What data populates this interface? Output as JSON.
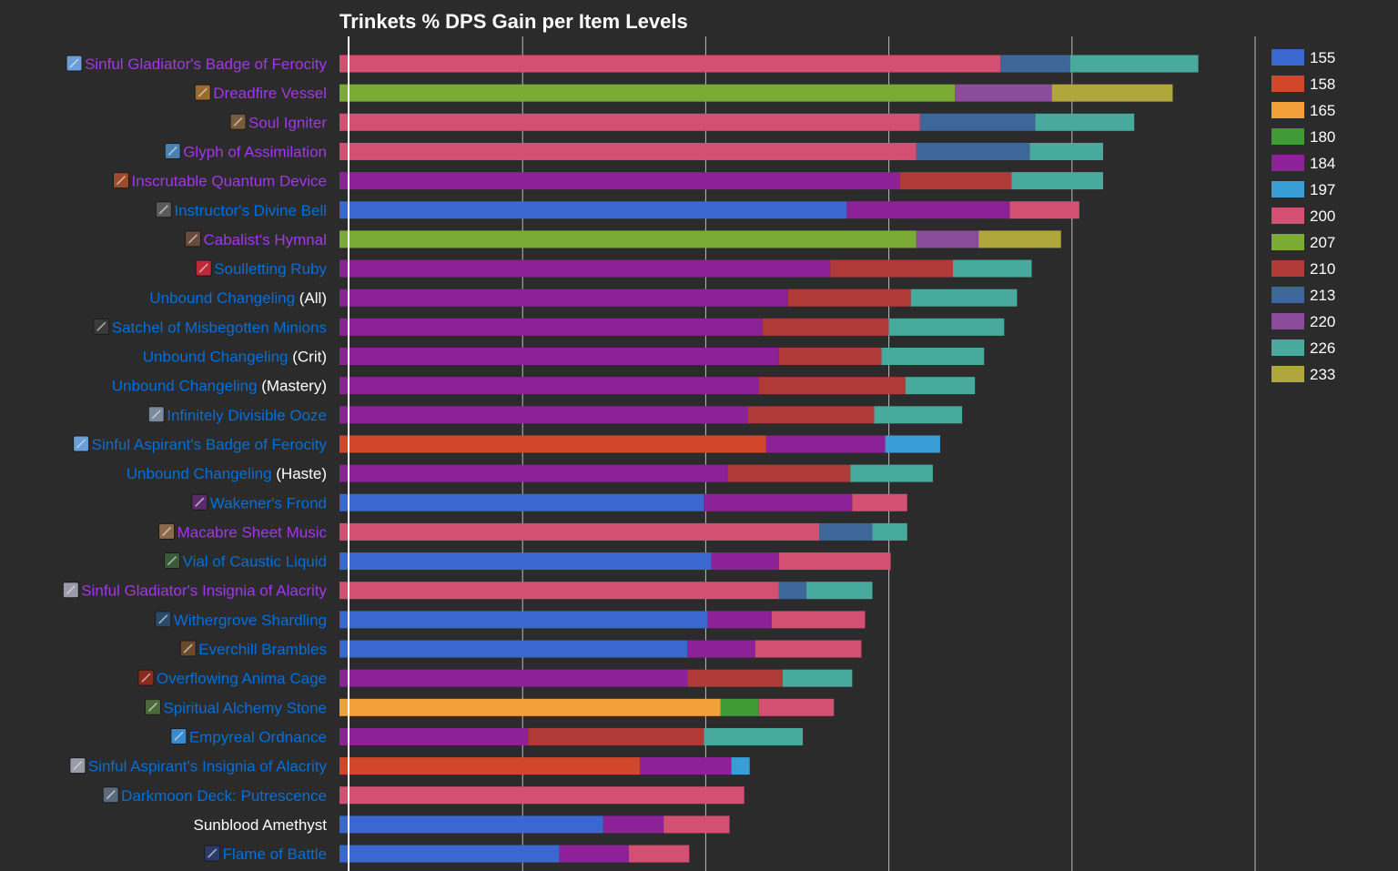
{
  "chart_data": {
    "type": "bar",
    "stacked": true,
    "orientation": "horizontal",
    "title": "Trinkets % DPS Gain per Item Levels",
    "xlabel": "",
    "ylabel": "",
    "xlim": [
      0,
      5
    ],
    "gridlines": [
      0,
      1,
      2,
      3,
      4,
      5
    ],
    "grid": true,
    "legend_position": "right",
    "legend": [
      {
        "label": "155",
        "color": "#3b68d0"
      },
      {
        "label": "158",
        "color": "#d2472a"
      },
      {
        "label": "165",
        "color": "#f4a03a"
      },
      {
        "label": "180",
        "color": "#3e9b35"
      },
      {
        "label": "184",
        "color": "#8d2198"
      },
      {
        "label": "197",
        "color": "#3a9ed6"
      },
      {
        "label": "200",
        "color": "#d45073"
      },
      {
        "label": "207",
        "color": "#7aab35"
      },
      {
        "label": "210",
        "color": "#b03a38"
      },
      {
        "label": "213",
        "color": "#3d6798"
      },
      {
        "label": "220",
        "color": "#8c4c9c"
      },
      {
        "label": "226",
        "color": "#48aa9c"
      },
      {
        "label": "233",
        "color": "#b0a73c"
      }
    ],
    "items": [
      {
        "name": "Sinful Gladiator's Badge of Ferocity",
        "suffix": "",
        "color": "#a335ee",
        "icon": "badge-icon",
        "icon_bg": "#6a9ed8",
        "segments": [
          {
            "level": "200",
            "value": 3.61
          },
          {
            "level": "213",
            "value": 0.38
          },
          {
            "level": "226",
            "value": 0.7
          }
        ]
      },
      {
        "name": "Dreadfire Vessel",
        "suffix": "",
        "color": "#a335ee",
        "icon": "vessel-icon",
        "icon_bg": "#9b6a2f",
        "segments": [
          {
            "level": "207",
            "value": 3.36
          },
          {
            "level": "220",
            "value": 0.53
          },
          {
            "level": "233",
            "value": 0.66
          }
        ]
      },
      {
        "name": "Soul Igniter",
        "suffix": "",
        "color": "#a335ee",
        "icon": "igniter-icon",
        "icon_bg": "#7a5a3a",
        "segments": [
          {
            "level": "200",
            "value": 3.17
          },
          {
            "level": "213",
            "value": 0.63
          },
          {
            "level": "226",
            "value": 0.54
          }
        ]
      },
      {
        "name": "Glyph of Assimilation",
        "suffix": "",
        "color": "#a335ee",
        "icon": "glyph-icon",
        "icon_bg": "#4a7fb0",
        "segments": [
          {
            "level": "200",
            "value": 3.15
          },
          {
            "level": "213",
            "value": 0.62
          },
          {
            "level": "226",
            "value": 0.4
          }
        ]
      },
      {
        "name": "Inscrutable Quantum Device",
        "suffix": "",
        "color": "#a335ee",
        "icon": "quantum-device-icon",
        "icon_bg": "#a04a2a",
        "segments": [
          {
            "level": "184",
            "value": 3.06
          },
          {
            "level": "210",
            "value": 0.61
          },
          {
            "level": "226",
            "value": 0.5
          }
        ]
      },
      {
        "name": "Instructor's Divine Bell",
        "suffix": "",
        "color": "#0070dd",
        "icon": "bell-icon",
        "icon_bg": "#5a5a5a",
        "segments": [
          {
            "level": "155",
            "value": 2.77
          },
          {
            "level": "184",
            "value": 0.89
          },
          {
            "level": "200",
            "value": 0.38
          }
        ]
      },
      {
        "name": "Cabalist's Hymnal",
        "suffix": "",
        "color": "#a335ee",
        "icon": "hymnal-icon",
        "icon_bg": "#6a4a3a",
        "segments": [
          {
            "level": "207",
            "value": 3.15
          },
          {
            "level": "220",
            "value": 0.34
          },
          {
            "level": "233",
            "value": 0.45
          }
        ]
      },
      {
        "name": "Soulletting Ruby",
        "suffix": "",
        "color": "#0070dd",
        "icon": "ruby-icon",
        "icon_bg": "#c0283a",
        "segments": [
          {
            "level": "184",
            "value": 2.68
          },
          {
            "level": "210",
            "value": 0.67
          },
          {
            "level": "226",
            "value": 0.43
          }
        ]
      },
      {
        "name": "Unbound Changeling",
        "suffix": " (All)",
        "color": "#0070dd",
        "icon": "",
        "icon_bg": "",
        "segments": [
          {
            "level": "184",
            "value": 2.45
          },
          {
            "level": "210",
            "value": 0.67
          },
          {
            "level": "226",
            "value": 0.58
          }
        ]
      },
      {
        "name": "Satchel of Misbegotten Minions",
        "suffix": "",
        "color": "#0070dd",
        "icon": "satchel-icon",
        "icon_bg": "#3a3a3a",
        "segments": [
          {
            "level": "184",
            "value": 2.31
          },
          {
            "level": "210",
            "value": 0.69
          },
          {
            "level": "226",
            "value": 0.63
          }
        ]
      },
      {
        "name": "Unbound Changeling",
        "suffix": " (Crit)",
        "color": "#0070dd",
        "icon": "",
        "icon_bg": "",
        "segments": [
          {
            "level": "184",
            "value": 2.4
          },
          {
            "level": "210",
            "value": 0.56
          },
          {
            "level": "226",
            "value": 0.56
          }
        ]
      },
      {
        "name": "Unbound Changeling",
        "suffix": " (Mastery)",
        "color": "#0070dd",
        "icon": "",
        "icon_bg": "",
        "segments": [
          {
            "level": "184",
            "value": 2.29
          },
          {
            "level": "210",
            "value": 0.8
          },
          {
            "level": "226",
            "value": 0.38
          }
        ]
      },
      {
        "name": "Infinitely Divisible Ooze",
        "suffix": "",
        "color": "#0070dd",
        "icon": "ooze-icon",
        "icon_bg": "#7a8a9a",
        "segments": [
          {
            "level": "184",
            "value": 2.23
          },
          {
            "level": "210",
            "value": 0.69
          },
          {
            "level": "226",
            "value": 0.48
          }
        ]
      },
      {
        "name": "Sinful Aspirant's Badge of Ferocity",
        "suffix": "",
        "color": "#0070dd",
        "icon": "badge-icon",
        "icon_bg": "#6a9ed8",
        "segments": [
          {
            "level": "158",
            "value": 2.33
          },
          {
            "level": "184",
            "value": 0.65
          },
          {
            "level": "197",
            "value": 0.3
          }
        ]
      },
      {
        "name": "Unbound Changeling",
        "suffix": " (Haste)",
        "color": "#0070dd",
        "icon": "",
        "icon_bg": "",
        "segments": [
          {
            "level": "184",
            "value": 2.12
          },
          {
            "level": "210",
            "value": 0.67
          },
          {
            "level": "226",
            "value": 0.45
          }
        ]
      },
      {
        "name": "Wakener's Frond",
        "suffix": "",
        "color": "#0070dd",
        "icon": "frond-icon",
        "icon_bg": "#5a2a6a",
        "segments": [
          {
            "level": "155",
            "value": 1.99
          },
          {
            "level": "184",
            "value": 0.81
          },
          {
            "level": "200",
            "value": 0.3
          }
        ]
      },
      {
        "name": "Macabre Sheet Music",
        "suffix": "",
        "color": "#a335ee",
        "icon": "sheet-music-icon",
        "icon_bg": "#8a6a4a",
        "segments": [
          {
            "level": "200",
            "value": 2.62
          },
          {
            "level": "213",
            "value": 0.29
          },
          {
            "level": "226",
            "value": 0.19
          }
        ]
      },
      {
        "name": "Vial of Caustic Liquid",
        "suffix": "",
        "color": "#0070dd",
        "icon": "vial-icon",
        "icon_bg": "#3a5a3a",
        "segments": [
          {
            "level": "155",
            "value": 2.03
          },
          {
            "level": "184",
            "value": 0.37
          },
          {
            "level": "200",
            "value": 0.61
          }
        ]
      },
      {
        "name": "Sinful Gladiator's Insignia of Alacrity",
        "suffix": "",
        "color": "#a335ee",
        "icon": "insignia-icon",
        "icon_bg": "#9a9aa8",
        "segments": [
          {
            "level": "200",
            "value": 2.4
          },
          {
            "level": "213",
            "value": 0.15
          },
          {
            "level": "226",
            "value": 0.36
          }
        ]
      },
      {
        "name": "Withergrove Shardling",
        "suffix": "",
        "color": "#0070dd",
        "icon": "shardling-icon",
        "icon_bg": "#2a4a6a",
        "segments": [
          {
            "level": "155",
            "value": 2.01
          },
          {
            "level": "184",
            "value": 0.35
          },
          {
            "level": "200",
            "value": 0.51
          }
        ]
      },
      {
        "name": "Everchill Brambles",
        "suffix": "",
        "color": "#0070dd",
        "icon": "brambles-icon",
        "icon_bg": "#6a4a2a",
        "segments": [
          {
            "level": "155",
            "value": 1.9
          },
          {
            "level": "184",
            "value": 0.37
          },
          {
            "level": "200",
            "value": 0.58
          }
        ]
      },
      {
        "name": "Overflowing Anima Cage",
        "suffix": "",
        "color": "#0070dd",
        "icon": "anima-cage-icon",
        "icon_bg": "#8a2a1a",
        "segments": [
          {
            "level": "184",
            "value": 1.9
          },
          {
            "level": "210",
            "value": 0.52
          },
          {
            "level": "226",
            "value": 0.38
          }
        ]
      },
      {
        "name": "Spiritual Alchemy Stone",
        "suffix": "",
        "color": "#0070dd",
        "icon": "alchemy-stone-icon",
        "icon_bg": "#4a6a3a",
        "segments": [
          {
            "level": "165",
            "value": 2.08
          },
          {
            "level": "180",
            "value": 0.21
          },
          {
            "level": "200",
            "value": 0.41
          }
        ]
      },
      {
        "name": "Empyreal Ordnance",
        "suffix": "",
        "color": "#0070dd",
        "icon": "ordnance-icon",
        "icon_bg": "#3a8ad0",
        "segments": [
          {
            "level": "184",
            "value": 1.03
          },
          {
            "level": "210",
            "value": 0.96
          },
          {
            "level": "226",
            "value": 0.54
          }
        ]
      },
      {
        "name": "Sinful Aspirant's Insignia of Alacrity",
        "suffix": "",
        "color": "#0070dd",
        "icon": "insignia-icon",
        "icon_bg": "#9a9aa8",
        "segments": [
          {
            "level": "158",
            "value": 1.64
          },
          {
            "level": "184",
            "value": 0.5
          },
          {
            "level": "197",
            "value": 0.1
          }
        ]
      },
      {
        "name": "Darkmoon Deck: Putrescence",
        "suffix": "",
        "color": "#0070dd",
        "icon": "darkmoon-deck-icon",
        "icon_bg": "#5a6a7a",
        "segments": [
          {
            "level": "200",
            "value": 2.21
          }
        ]
      },
      {
        "name": "Sunblood Amethyst",
        "suffix": "",
        "color": "#ffffff",
        "icon": "",
        "icon_bg": "",
        "segments": [
          {
            "level": "155",
            "value": 1.44
          },
          {
            "level": "184",
            "value": 0.33
          },
          {
            "level": "200",
            "value": 0.36
          }
        ]
      },
      {
        "name": "Flame of Battle",
        "suffix": "",
        "color": "#0070dd",
        "icon": "flame-icon",
        "icon_bg": "#2a3a6a",
        "segments": [
          {
            "level": "155",
            "value": 1.2
          },
          {
            "level": "184",
            "value": 0.38
          },
          {
            "level": "200",
            "value": 0.33
          }
        ]
      }
    ]
  }
}
